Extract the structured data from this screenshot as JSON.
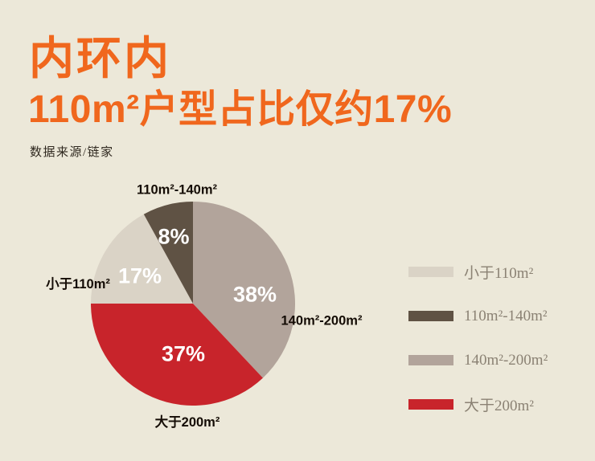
{
  "page": {
    "title": "内环内",
    "subtitle": "110m²户型占比仅约17%",
    "source": "数据来源/链家"
  },
  "colors": {
    "background": "#ece8d9",
    "accent_orange": "#f0671d",
    "percent_text": "#ffffff",
    "outer_label_text": "#140c05",
    "legend_text": "#8b8274"
  },
  "chart_data": {
    "type": "pie",
    "title": "内环内 110m²户型占比仅约17%",
    "source": "数据来源/链家",
    "start_angle_deg": 0,
    "direction": "clockwise",
    "legend_position": "right",
    "slices": [
      {
        "label": "140m²-200m²",
        "value": 38,
        "pct_label": "38%",
        "color": "#b2a49b"
      },
      {
        "label": "大于200m²",
        "value": 37,
        "pct_label": "37%",
        "color": "#c8242b"
      },
      {
        "label": "小于110m²",
        "value": 17,
        "pct_label": "17%",
        "color": "#dad3c6"
      },
      {
        "label": "110m²-140m²",
        "value": 8,
        "pct_label": "8%",
        "color": "#5f5244"
      }
    ]
  },
  "legend": {
    "items": [
      {
        "label": "小于110m²",
        "color": "#dad3c6"
      },
      {
        "label": "110m²-140m²",
        "color": "#5f5244"
      },
      {
        "label": "140m²-200m²",
        "color": "#b2a49b"
      },
      {
        "label": "大于200m²",
        "color": "#c8242b"
      }
    ]
  }
}
